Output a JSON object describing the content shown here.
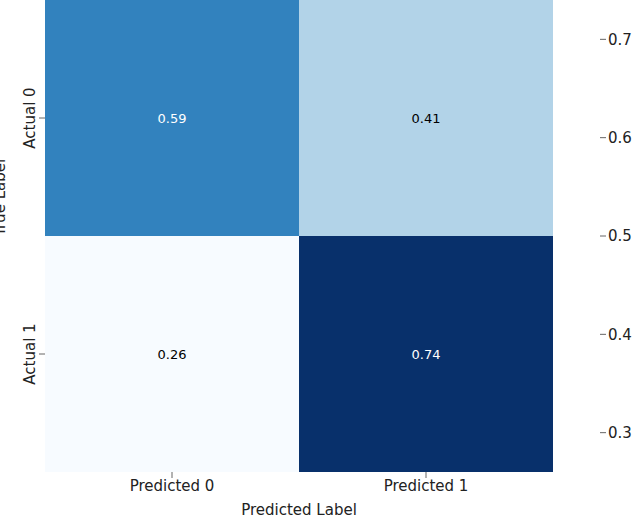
{
  "chart_data": {
    "type": "heatmap",
    "categories": [
      "Predicted 0",
      "Predicted 1"
    ],
    "y_categories": [
      "Actual 0",
      "Actual 1"
    ],
    "xlabel": "Predicted Label",
    "ylabel": "True Label",
    "cells": [
      [
        0.59,
        0.41
      ],
      [
        0.26,
        0.74
      ]
    ],
    "data_labels": true,
    "colorbar_range": [
      0.26,
      0.74
    ],
    "colorbar_ticks": [
      0.3,
      0.4,
      0.5,
      0.6,
      0.7
    ]
  }
}
